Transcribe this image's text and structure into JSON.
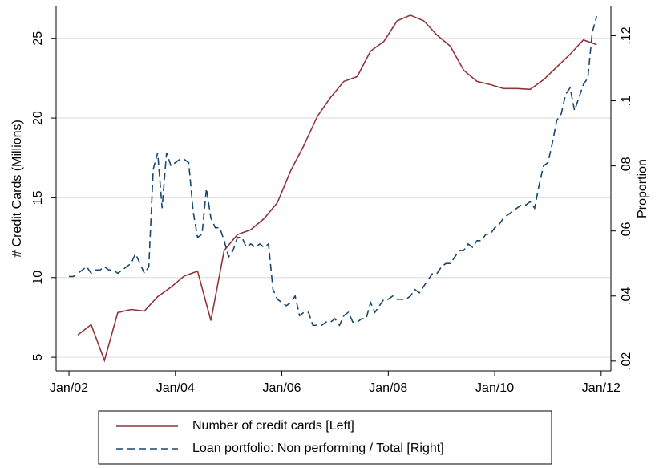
{
  "chart_data": {
    "type": "line",
    "y_label": "# Credit Cards (Millions)",
    "y2_label": "Proportion",
    "xlim": [
      -2.9,
      122.2
    ],
    "xticks": [
      {
        "value": 0,
        "label": "Jan/02"
      },
      {
        "value": 24,
        "label": "Jan/04"
      },
      {
        "value": 48,
        "label": "Jan/06"
      },
      {
        "value": 72,
        "label": "Jan/08"
      },
      {
        "value": 96,
        "label": "Jan/10"
      },
      {
        "value": 120,
        "label": "Jan/12"
      }
    ],
    "ylim": [
      4.15,
      27.0
    ],
    "yticks": [
      5,
      10,
      15,
      20,
      25
    ],
    "y2lim": [
      0.017,
      0.129
    ],
    "y2ticks": [
      {
        "value": 0.02,
        "label": ".02"
      },
      {
        "value": 0.04,
        "label": ".04"
      },
      {
        "value": 0.06,
        "label": ".06"
      },
      {
        "value": 0.08,
        "label": ".08"
      },
      {
        "value": 0.1,
        "label": ".1"
      },
      {
        "value": 0.12,
        "label": ".12"
      }
    ],
    "grid": true,
    "legend": "bottom",
    "series": [
      {
        "name": "Number of credit cards [Left]",
        "color": "#90353b",
        "axis": "y",
        "dashed": false,
        "x": [
          2,
          5,
          8,
          11,
          14,
          17,
          20,
          23,
          26,
          29,
          32,
          35,
          38,
          41,
          44,
          47,
          50,
          53,
          56,
          59,
          62,
          65,
          68,
          71,
          74,
          77,
          80,
          83,
          86,
          89,
          92,
          95,
          98,
          101,
          104,
          107,
          110,
          113,
          116,
          119
        ],
        "values": [
          6.4,
          7.05,
          4.8,
          7.8,
          8.0,
          7.9,
          8.8,
          9.4,
          10.1,
          10.4,
          7.3,
          11.7,
          12.7,
          13.0,
          13.7,
          14.7,
          16.7,
          18.3,
          20.1,
          21.3,
          22.3,
          22.6,
          24.2,
          24.8,
          26.1,
          26.45,
          26.1,
          25.2,
          24.5,
          23.0,
          22.3,
          22.1,
          21.85,
          21.85,
          21.8,
          22.4,
          23.2,
          24.0,
          24.9,
          24.6
        ]
      },
      {
        "name": "Loan portfolio: Non performing / Total [Right]",
        "color": "#1a476f",
        "axis": "y2",
        "dashed": true,
        "x": [
          0,
          1,
          2,
          3,
          4,
          5,
          6,
          7,
          8,
          9,
          10,
          11,
          12,
          13,
          14,
          15,
          16,
          17,
          18,
          19,
          20,
          21,
          22,
          23,
          24,
          25,
          26,
          27,
          28,
          29,
          30,
          31,
          32,
          33,
          34,
          35,
          36,
          37,
          38,
          39,
          40,
          41,
          42,
          43,
          44,
          45,
          46,
          47,
          48,
          49,
          50,
          51,
          52,
          53,
          54,
          55,
          56,
          57,
          58,
          59,
          60,
          61,
          62,
          63,
          64,
          65,
          66,
          67,
          68,
          69,
          70,
          71,
          72,
          73,
          74,
          75,
          76,
          77,
          78,
          79,
          80,
          81,
          82,
          83,
          84,
          85,
          86,
          87,
          88,
          89,
          90,
          91,
          92,
          93,
          94,
          95,
          96,
          97,
          98,
          99,
          100,
          101,
          102,
          103,
          104,
          105,
          106,
          107,
          108,
          109,
          110,
          111,
          112,
          113,
          114,
          115,
          116,
          117,
          118,
          119
        ],
        "values": [
          0.046,
          0.046,
          0.047,
          0.048,
          0.049,
          0.047,
          0.048,
          0.048,
          0.049,
          0.048,
          0.048,
          0.047,
          0.048,
          0.049,
          0.05,
          0.053,
          0.05,
          0.047,
          0.049,
          0.079,
          0.084,
          0.067,
          0.084,
          0.08,
          0.081,
          0.082,
          0.082,
          0.081,
          0.066,
          0.058,
          0.059,
          0.073,
          0.064,
          0.061,
          0.061,
          0.057,
          0.052,
          0.054,
          0.058,
          0.058,
          0.055,
          0.056,
          0.055,
          0.056,
          0.055,
          0.056,
          0.042,
          0.039,
          0.038,
          0.037,
          0.038,
          0.04,
          0.034,
          0.035,
          0.035,
          0.031,
          0.031,
          0.031,
          0.032,
          0.032,
          0.033,
          0.031,
          0.034,
          0.035,
          0.032,
          0.032,
          0.033,
          0.033,
          0.038,
          0.035,
          0.037,
          0.039,
          0.039,
          0.04,
          0.039,
          0.039,
          0.039,
          0.04,
          0.042,
          0.041,
          0.043,
          0.045,
          0.047,
          0.047,
          0.049,
          0.05,
          0.05,
          0.052,
          0.054,
          0.054,
          0.056,
          0.055,
          0.057,
          0.057,
          0.059,
          0.059,
          0.061,
          0.062,
          0.064,
          0.065,
          0.066,
          0.067,
          0.068,
          0.068,
          0.069,
          0.067,
          0.074,
          0.08,
          0.081,
          0.087,
          0.094,
          0.096,
          0.102,
          0.104,
          0.097,
          0.101,
          0.105,
          0.107,
          0.121,
          0.126
        ]
      }
    ]
  }
}
